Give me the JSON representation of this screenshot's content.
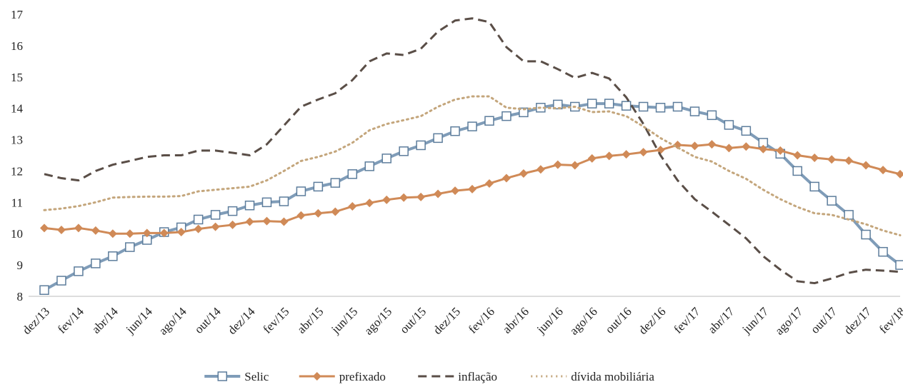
{
  "chart_data": {
    "type": "line",
    "categories": [
      "dez/13",
      null,
      "fev/14",
      null,
      "abr/14",
      null,
      "jun/14",
      null,
      "ago/14",
      null,
      "out/14",
      null,
      "dez/14",
      null,
      "fev/15",
      null,
      "abr/15",
      null,
      "jun/15",
      null,
      "ago/15",
      null,
      "out/15",
      null,
      "dez/15",
      null,
      "fev/16",
      null,
      "abr/16",
      null,
      "jun/16",
      null,
      "ago/16",
      null,
      "out/16",
      null,
      "dez/16",
      null,
      "fev/17",
      null,
      "abr/17",
      null,
      "jun/17",
      null,
      "ago/17",
      null,
      "out/17",
      null,
      "dez/17",
      null,
      "fev/18"
    ],
    "ylim": [
      8,
      17
    ],
    "yticks": [
      8,
      9,
      10,
      11,
      12,
      13,
      14,
      15,
      16,
      17
    ],
    "grid": false,
    "legend": "bottom",
    "series": [
      {
        "name": "Selic",
        "color": "#7f9cb8",
        "style": "solid",
        "marker": "square",
        "values": [
          8.2,
          8.5,
          8.8,
          9.05,
          9.28,
          9.57,
          9.8,
          10.05,
          10.2,
          10.45,
          10.6,
          10.72,
          10.9,
          11.0,
          11.03,
          11.35,
          11.5,
          11.62,
          11.9,
          12.15,
          12.4,
          12.63,
          12.82,
          13.05,
          13.27,
          13.42,
          13.6,
          13.75,
          13.87,
          14.02,
          14.12,
          14.05,
          14.15,
          14.15,
          14.08,
          14.05,
          14.02,
          14.05,
          13.9,
          13.78,
          13.47,
          13.28,
          12.9,
          12.55,
          12.0,
          11.5,
          11.05,
          10.6,
          9.97,
          9.42,
          9.0
        ]
      },
      {
        "name": "prefixado",
        "color": "#d08a57",
        "style": "solid",
        "marker": "diamond",
        "values": [
          10.18,
          10.12,
          10.18,
          10.1,
          10.0,
          10.0,
          10.02,
          10.02,
          10.05,
          10.15,
          10.22,
          10.28,
          10.38,
          10.4,
          10.38,
          10.58,
          10.65,
          10.7,
          10.87,
          10.98,
          11.08,
          11.15,
          11.17,
          11.27,
          11.37,
          11.42,
          11.6,
          11.77,
          11.92,
          12.05,
          12.2,
          12.18,
          12.4,
          12.48,
          12.53,
          12.6,
          12.67,
          12.83,
          12.8,
          12.85,
          12.73,
          12.78,
          12.7,
          12.65,
          12.5,
          12.42,
          12.37,
          12.33,
          12.18,
          12.03,
          11.9
        ]
      },
      {
        "name": "inflação",
        "color": "#5a4e47",
        "style": "dashed",
        "marker": null,
        "values": [
          11.9,
          11.77,
          11.7,
          12.0,
          12.2,
          12.32,
          12.45,
          12.5,
          12.5,
          12.65,
          12.65,
          12.58,
          12.5,
          12.85,
          13.45,
          14.05,
          14.28,
          14.48,
          14.9,
          15.5,
          15.75,
          15.7,
          15.9,
          16.45,
          16.8,
          16.87,
          16.75,
          15.95,
          15.5,
          15.5,
          15.25,
          14.97,
          15.13,
          14.95,
          14.35,
          13.5,
          12.5,
          11.7,
          11.1,
          10.7,
          10.28,
          9.85,
          9.28,
          8.85,
          8.48,
          8.42,
          8.57,
          8.75,
          8.85,
          8.82,
          8.78
        ]
      },
      {
        "name": "dívida mobiliária",
        "color": "#c4a67c",
        "style": "dotted",
        "marker": null,
        "values": [
          10.75,
          10.8,
          10.88,
          11.0,
          11.15,
          11.17,
          11.18,
          11.18,
          11.2,
          11.35,
          11.4,
          11.45,
          11.5,
          11.7,
          12.0,
          12.32,
          12.45,
          12.62,
          12.9,
          13.3,
          13.5,
          13.62,
          13.75,
          14.05,
          14.28,
          14.38,
          14.38,
          14.02,
          13.97,
          14.02,
          14.0,
          14.05,
          13.88,
          13.9,
          13.75,
          13.42,
          13.05,
          12.75,
          12.45,
          12.3,
          12.0,
          11.75,
          11.4,
          11.1,
          10.85,
          10.65,
          10.6,
          10.45,
          10.3,
          10.1,
          9.95
        ]
      }
    ]
  }
}
